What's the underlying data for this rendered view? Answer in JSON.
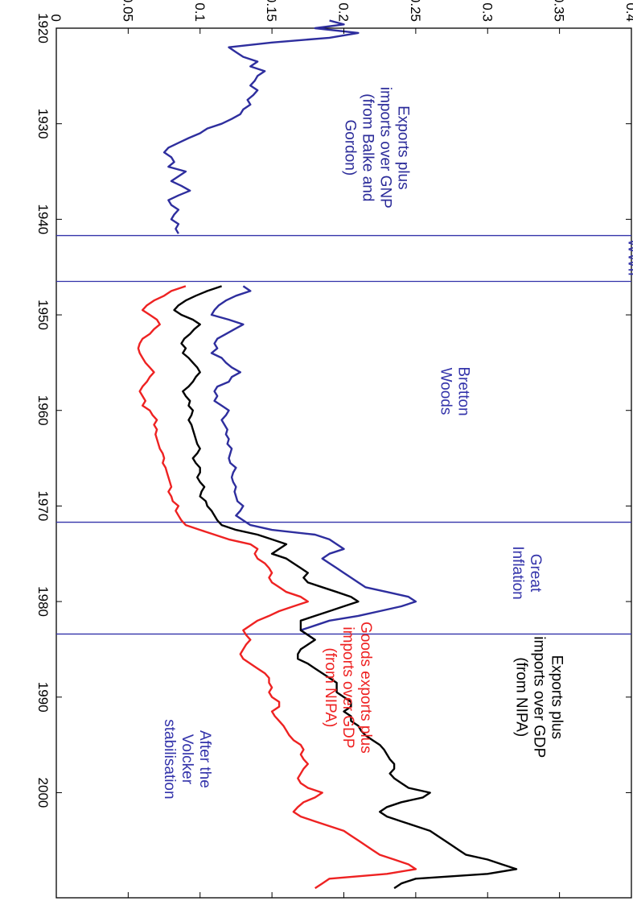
{
  "chart_data": {
    "type": "line",
    "orientation": "rotated-90-clockwise",
    "grid": false,
    "x_range": [
      1920,
      2011
    ],
    "y_range": [
      0,
      0.4
    ],
    "x_ticks": [
      "1920",
      "1930",
      "1940",
      "1950",
      "1960",
      "1970",
      "1980",
      "1990",
      "2000"
    ],
    "y_ticks": [
      "0",
      "0.05",
      "0.1",
      "0.15",
      "0.2",
      "0.25",
      "0.3",
      "0.35",
      "0.4"
    ],
    "vertical_lines": [
      1941.7,
      1946.5,
      1971.7,
      1983.4
    ],
    "annotations": [
      {
        "id": "wwii",
        "lines": [
          "WWII"
        ],
        "color": "#3333aa"
      },
      {
        "id": "bretton",
        "lines": [
          "Bretton",
          "Woods"
        ],
        "color": "#3333aa"
      },
      {
        "id": "great",
        "lines": [
          "Great",
          "Inflation"
        ],
        "color": "#3333aa"
      },
      {
        "id": "volcker",
        "lines": [
          "After the",
          "Volcker",
          "stabilisation"
        ],
        "color": "#3333aa"
      },
      {
        "id": "gnp",
        "lines": [
          "Exports plus",
          "imports over GNP",
          "(from Balke and",
          "Gordon)"
        ],
        "color": "#2b2b99"
      },
      {
        "id": "gdp",
        "lines": [
          "Exports plus",
          "imports over GDP",
          "(from NIPA)"
        ],
        "color": "#000000"
      },
      {
        "id": "goods",
        "lines": [
          "Goods exports plus",
          "imports over GDP",
          "(from NIPA)"
        ],
        "color": "#ee2222"
      }
    ],
    "series": [
      {
        "color": "#2e2e9e",
        "x": [
          1919.2,
          1919.6,
          1920.0,
          1920.5,
          1921.0,
          1921.5,
          1922.0,
          1922.5,
          1923.0,
          1923.5,
          1924.0,
          1924.5,
          1925.0,
          1925.5,
          1926.0,
          1926.5,
          1927.0,
          1927.5,
          1928.0,
          1928.5,
          1929.0,
          1929.5,
          1930.0,
          1930.5,
          1931.0,
          1931.5,
          1932.0,
          1932.5,
          1933.0,
          1933.5,
          1934.0,
          1934.5,
          1935.0,
          1935.5,
          1936.0,
          1936.5,
          1937.0,
          1937.5,
          1938.0,
          1938.5,
          1939.0,
          1939.5,
          1940.0,
          1940.5,
          1941.0,
          1941.5
        ],
        "y": [
          0.19,
          0.2,
          0.18,
          0.21,
          0.19,
          0.15,
          0.12,
          0.125,
          0.13,
          0.14,
          0.135,
          0.145,
          0.14,
          0.138,
          0.135,
          0.14,
          0.137,
          0.133,
          0.135,
          0.13,
          0.128,
          0.122,
          0.115,
          0.105,
          0.1,
          0.092,
          0.085,
          0.078,
          0.075,
          0.08,
          0.082,
          0.078,
          0.09,
          0.085,
          0.08,
          0.087,
          0.093,
          0.085,
          0.078,
          0.08,
          0.085,
          0.082,
          0.08,
          0.085,
          0.083,
          0.085
        ]
      },
      {
        "color": "#2e2e9e",
        "x": [
          1947.0,
          1947.5,
          1948.0,
          1948.5,
          1949.0,
          1949.5,
          1950.0,
          1950.5,
          1951.0,
          1951.5,
          1952.0,
          1952.5,
          1953.0,
          1953.5,
          1954.0,
          1954.5,
          1955.0,
          1955.5,
          1956.0,
          1956.5,
          1957.0,
          1957.5,
          1958.0,
          1958.5,
          1959.0,
          1959.5,
          1960.0,
          1960.5,
          1961.0,
          1961.5,
          1962.0,
          1962.5,
          1963.0,
          1963.5,
          1964.0,
          1964.5,
          1965.0,
          1965.5,
          1966.0,
          1966.5,
          1967.0,
          1967.5,
          1968.0,
          1968.5,
          1969.0,
          1969.5,
          1970.0,
          1970.5,
          1971.0,
          1971.5,
          1972.0,
          1972.5,
          1973.0,
          1973.5,
          1974.0,
          1974.5,
          1975.0,
          1975.5,
          1976.0,
          1976.5,
          1977.0,
          1977.5,
          1978.0,
          1978.5,
          1979.0,
          1979.5,
          1980.0,
          1980.5,
          1981.0,
          1981.5,
          1982.0,
          1982.5,
          1983.0,
          1983.5,
          1984.0
        ],
        "y": [
          0.13,
          0.135,
          0.125,
          0.118,
          0.113,
          0.11,
          0.108,
          0.12,
          0.13,
          0.124,
          0.118,
          0.112,
          0.11,
          0.112,
          0.108,
          0.115,
          0.118,
          0.122,
          0.128,
          0.122,
          0.12,
          0.112,
          0.11,
          0.112,
          0.11,
          0.115,
          0.12,
          0.118,
          0.115,
          0.117,
          0.119,
          0.118,
          0.12,
          0.119,
          0.122,
          0.121,
          0.12,
          0.121,
          0.125,
          0.123,
          0.122,
          0.123,
          0.125,
          0.124,
          0.125,
          0.126,
          0.13,
          0.128,
          0.125,
          0.13,
          0.135,
          0.15,
          0.18,
          0.19,
          0.195,
          0.2,
          0.19,
          0.185,
          0.19,
          0.195,
          0.2,
          0.205,
          0.21,
          0.215,
          0.23,
          0.245,
          0.25,
          0.24,
          0.225,
          0.21,
          0.19,
          0.18,
          0.17,
          0.175,
          0.18
        ]
      },
      {
        "color": "#000000",
        "x": [
          1947.0,
          1947.5,
          1948.0,
          1948.5,
          1949.0,
          1949.5,
          1950.0,
          1950.5,
          1951.0,
          1951.5,
          1952.0,
          1952.5,
          1953.0,
          1953.5,
          1954.0,
          1954.5,
          1955.0,
          1955.5,
          1956.0,
          1956.5,
          1957.0,
          1957.5,
          1958.0,
          1958.5,
          1959.0,
          1959.5,
          1960.0,
          1960.5,
          1961.0,
          1961.5,
          1962.0,
          1962.5,
          1963.0,
          1963.5,
          1964.0,
          1964.5,
          1965.0,
          1965.5,
          1966.0,
          1966.5,
          1967.0,
          1967.5,
          1968.0,
          1968.5,
          1969.0,
          1969.5,
          1970.0,
          1970.5,
          1971.0,
          1971.5,
          1972.0,
          1972.5,
          1973.0,
          1973.5,
          1974.0,
          1974.5,
          1975.0,
          1975.5,
          1976.0,
          1976.5,
          1977.0,
          1977.5,
          1978.0,
          1978.5,
          1979.0,
          1979.5,
          1980.0,
          1980.5,
          1981.0,
          1981.5,
          1982.0,
          1982.5,
          1983.0,
          1983.5,
          1984.0,
          1984.5,
          1985.0,
          1985.5,
          1986.0,
          1986.5,
          1987.0,
          1987.5,
          1988.0,
          1988.5,
          1989.0,
          1989.5,
          1990.0,
          1990.5,
          1991.0,
          1991.5,
          1992.0,
          1992.5,
          1993.0,
          1993.5,
          1994.0,
          1994.5,
          1995.0,
          1995.5,
          1996.0,
          1996.5,
          1997.0,
          1997.5,
          1998.0,
          1998.5,
          1999.0,
          1999.5,
          2000.0,
          2000.5,
          2001.0,
          2001.5,
          2002.0,
          2002.5,
          2003.0,
          2003.5,
          2004.0,
          2004.5,
          2005.0,
          2005.5,
          2006.0,
          2006.5,
          2007.0,
          2007.5,
          2008.0,
          2008.5,
          2009.0,
          2009.5,
          2010.0
        ],
        "y": [
          0.115,
          0.105,
          0.097,
          0.09,
          0.085,
          0.082,
          0.087,
          0.095,
          0.1,
          0.096,
          0.093,
          0.089,
          0.087,
          0.09,
          0.088,
          0.092,
          0.095,
          0.098,
          0.1,
          0.097,
          0.095,
          0.092,
          0.088,
          0.09,
          0.093,
          0.092,
          0.095,
          0.094,
          0.092,
          0.094,
          0.095,
          0.096,
          0.097,
          0.098,
          0.1,
          0.098,
          0.095,
          0.097,
          0.1,
          0.1,
          0.098,
          0.1,
          0.103,
          0.101,
          0.1,
          0.104,
          0.105,
          0.108,
          0.11,
          0.112,
          0.115,
          0.125,
          0.14,
          0.15,
          0.16,
          0.155,
          0.15,
          0.16,
          0.165,
          0.17,
          0.175,
          0.172,
          0.175,
          0.185,
          0.195,
          0.205,
          0.21,
          0.2,
          0.19,
          0.18,
          0.17,
          0.17,
          0.17,
          0.175,
          0.18,
          0.175,
          0.17,
          0.168,
          0.168,
          0.175,
          0.18,
          0.185,
          0.19,
          0.195,
          0.195,
          0.195,
          0.2,
          0.205,
          0.205,
          0.2,
          0.205,
          0.205,
          0.21,
          0.212,
          0.215,
          0.22,
          0.225,
          0.228,
          0.23,
          0.232,
          0.235,
          0.235,
          0.232,
          0.235,
          0.24,
          0.245,
          0.26,
          0.255,
          0.24,
          0.23,
          0.225,
          0.23,
          0.24,
          0.25,
          0.26,
          0.265,
          0.27,
          0.275,
          0.28,
          0.285,
          0.3,
          0.31,
          0.32,
          0.3,
          0.25,
          0.24,
          0.235
        ]
      },
      {
        "color": "#ee2222",
        "x": [
          1947.0,
          1947.5,
          1948.0,
          1948.5,
          1949.0,
          1949.5,
          1950.0,
          1950.5,
          1951.0,
          1951.5,
          1952.0,
          1952.5,
          1953.0,
          1953.5,
          1954.0,
          1954.5,
          1955.0,
          1955.5,
          1956.0,
          1956.5,
          1957.0,
          1957.5,
          1958.0,
          1958.5,
          1959.0,
          1959.5,
          1960.0,
          1960.5,
          1961.0,
          1961.5,
          1962.0,
          1962.5,
          1963.0,
          1963.5,
          1964.0,
          1964.5,
          1965.0,
          1965.5,
          1966.0,
          1966.5,
          1967.0,
          1967.5,
          1968.0,
          1968.5,
          1969.0,
          1969.5,
          1970.0,
          1970.5,
          1971.0,
          1971.5,
          1972.0,
          1972.5,
          1973.0,
          1973.5,
          1974.0,
          1974.5,
          1975.0,
          1975.5,
          1976.0,
          1976.5,
          1977.0,
          1977.5,
          1978.0,
          1978.5,
          1979.0,
          1979.5,
          1980.0,
          1980.5,
          1981.0,
          1981.5,
          1982.0,
          1982.5,
          1983.0,
          1983.5,
          1984.0,
          1984.5,
          1985.0,
          1985.5,
          1986.0,
          1986.5,
          1987.0,
          1987.5,
          1988.0,
          1988.5,
          1989.0,
          1989.5,
          1990.0,
          1990.5,
          1991.0,
          1991.5,
          1992.0,
          1992.5,
          1993.0,
          1993.5,
          1994.0,
          1994.5,
          1995.0,
          1995.5,
          1996.0,
          1996.5,
          1997.0,
          1997.5,
          1998.0,
          1998.5,
          1999.0,
          1999.5,
          2000.0,
          2000.5,
          2001.0,
          2001.5,
          2002.0,
          2002.5,
          2003.0,
          2003.5,
          2004.0,
          2004.5,
          2005.0,
          2005.5,
          2006.0,
          2006.5,
          2007.0,
          2007.5,
          2008.0,
          2008.5,
          2009.0,
          2009.5,
          2010.0
        ],
        "y": [
          0.09,
          0.08,
          0.075,
          0.068,
          0.063,
          0.06,
          0.065,
          0.07,
          0.072,
          0.068,
          0.065,
          0.06,
          0.058,
          0.057,
          0.058,
          0.06,
          0.062,
          0.065,
          0.068,
          0.065,
          0.063,
          0.06,
          0.058,
          0.06,
          0.062,
          0.06,
          0.065,
          0.067,
          0.07,
          0.068,
          0.07,
          0.069,
          0.07,
          0.071,
          0.072,
          0.074,
          0.075,
          0.074,
          0.076,
          0.077,
          0.078,
          0.079,
          0.08,
          0.078,
          0.08,
          0.081,
          0.085,
          0.083,
          0.085,
          0.087,
          0.09,
          0.1,
          0.11,
          0.12,
          0.135,
          0.14,
          0.138,
          0.14,
          0.145,
          0.148,
          0.15,
          0.148,
          0.15,
          0.155,
          0.16,
          0.17,
          0.175,
          0.165,
          0.155,
          0.148,
          0.14,
          0.135,
          0.13,
          0.132,
          0.135,
          0.132,
          0.13,
          0.128,
          0.13,
          0.135,
          0.14,
          0.145,
          0.148,
          0.148,
          0.15,
          0.148,
          0.15,
          0.155,
          0.155,
          0.15,
          0.152,
          0.155,
          0.158,
          0.16,
          0.162,
          0.165,
          0.17,
          0.172,
          0.17,
          0.172,
          0.175,
          0.172,
          0.17,
          0.168,
          0.17,
          0.175,
          0.185,
          0.18,
          0.172,
          0.168,
          0.165,
          0.17,
          0.18,
          0.19,
          0.2,
          0.205,
          0.21,
          0.215,
          0.22,
          0.225,
          0.235,
          0.245,
          0.25,
          0.23,
          0.19,
          0.185,
          0.18
        ]
      }
    ]
  }
}
